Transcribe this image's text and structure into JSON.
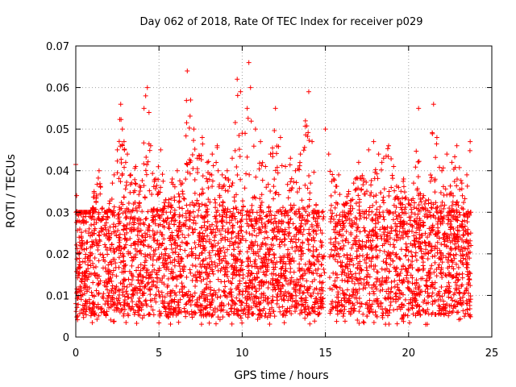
{
  "chart_data": {
    "type": "scatter",
    "title": "Day 062 of 2018, Rate Of TEC Index for receiver p029",
    "xlabel": "GPS time / hours",
    "ylabel": "ROTI / TECUs",
    "xlim": [
      0,
      25
    ],
    "ylim": [
      0,
      0.07
    ],
    "xticks": [
      "0",
      "5",
      "10",
      "15",
      "20",
      "25"
    ],
    "yticks": [
      "0",
      "0.01",
      "0.02",
      "0.03",
      "0.04",
      "0.05",
      "0.06",
      "0.07"
    ],
    "grid": true,
    "marker": "plus",
    "color": "#ff0000",
    "series": [
      {
        "name": "ROTI",
        "x": [
          0.0,
          0.05,
          0.1,
          0.2,
          0.3,
          0.5,
          0.8,
          1.1,
          1.4,
          1.6,
          1.9,
          2.2,
          2.5,
          2.7,
          2.8,
          2.9,
          3.0,
          3.1,
          3.3,
          3.6,
          3.9,
          4.1,
          4.2,
          4.3,
          4.4,
          4.5,
          4.8,
          5.1,
          5.4,
          5.8,
          6.1,
          6.4,
          6.7,
          6.9,
          7.1,
          7.3,
          7.6,
          7.9,
          8.2,
          8.5,
          8.8,
          9.1,
          9.4,
          9.7,
          9.9,
          10.0,
          10.3,
          10.4,
          10.5,
          10.8,
          11.1,
          11.4,
          11.7,
          12.0,
          12.3,
          12.6,
          12.9,
          13.2,
          13.5,
          13.8,
          14.0,
          14.2,
          14.5,
          14.8,
          15.0,
          15.2,
          15.5,
          15.8,
          16.1,
          16.4,
          16.7,
          17.0,
          17.3,
          17.6,
          17.9,
          18.2,
          18.5,
          18.8,
          19.1,
          19.4,
          19.7,
          20.0,
          20.3,
          20.6,
          20.9,
          21.2,
          21.5,
          21.7,
          22.0,
          22.3,
          22.6,
          22.9,
          23.2,
          23.5,
          23.7
        ],
        "y": [
          0.0415,
          0.034,
          0.028,
          0.024,
          0.022,
          0.021,
          0.026,
          0.035,
          0.04,
          0.031,
          0.029,
          0.037,
          0.045,
          0.056,
          0.05,
          0.047,
          0.042,
          0.044,
          0.039,
          0.041,
          0.036,
          0.055,
          0.058,
          0.06,
          0.054,
          0.046,
          0.038,
          0.045,
          0.033,
          0.038,
          0.04,
          0.037,
          0.064,
          0.057,
          0.05,
          0.043,
          0.048,
          0.042,
          0.044,
          0.046,
          0.039,
          0.04,
          0.043,
          0.062,
          0.059,
          0.049,
          0.055,
          0.066,
          0.06,
          0.05,
          0.047,
          0.041,
          0.044,
          0.055,
          0.048,
          0.041,
          0.043,
          0.04,
          0.044,
          0.052,
          0.059,
          0.047,
          0.03,
          0.025,
          0.05,
          0.044,
          0.038,
          0.039,
          0.032,
          0.035,
          0.037,
          0.042,
          0.038,
          0.045,
          0.047,
          0.044,
          0.043,
          0.046,
          0.041,
          0.036,
          0.038,
          0.033,
          0.037,
          0.055,
          0.034,
          0.033,
          0.056,
          0.048,
          0.04,
          0.044,
          0.042,
          0.046,
          0.037,
          0.039,
          0.047
        ]
      }
    ],
    "noise_floor": {
      "min": 0.005,
      "max": 0.03
    }
  }
}
